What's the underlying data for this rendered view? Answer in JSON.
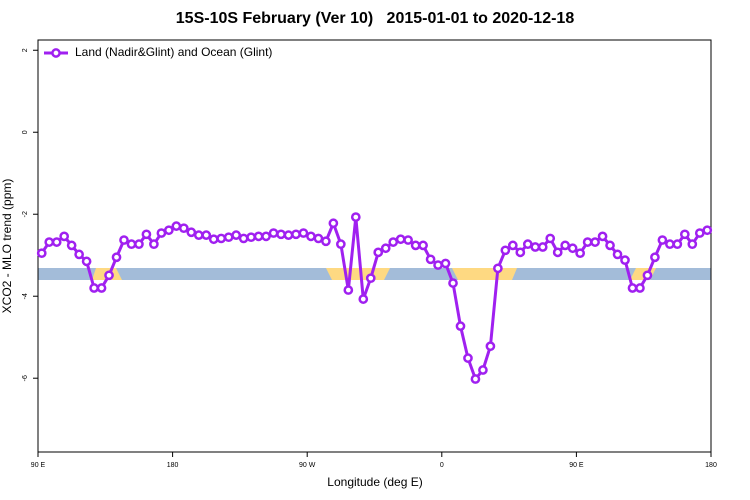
{
  "chart_data": {
    "type": "line",
    "title": "15S-10S February (Ver 10)   2015-01-01 to 2020-12-18",
    "xlabel": "Longitude (deg E)",
    "ylabel": "XCO2 - MLO trend (ppm)",
    "x": [
      92.5,
      97.5,
      102.5,
      107.5,
      112.5,
      117.5,
      122.5,
      127.5,
      132.5,
      137.5,
      142.5,
      147.5,
      152.5,
      157.5,
      162.5,
      167.5,
      172.5,
      177.5,
      182.5,
      187.5,
      192.5,
      197.5,
      202.5,
      207.5,
      212.5,
      217.5,
      222.5,
      227.5,
      232.5,
      237.5,
      242.5,
      247.5,
      252.5,
      257.5,
      262.5,
      267.5,
      272.5,
      277.5,
      282.5,
      287.5,
      292.5,
      297.5,
      302.5,
      307.5,
      312.5,
      317.5,
      322.5,
      327.5,
      332.5,
      337.5,
      342.5,
      347.5,
      352.5,
      357.5,
      362.5,
      367.5,
      372.5,
      377.5,
      382.5,
      387.5,
      392.5,
      397.5,
      402.5,
      407.5,
      412.5,
      417.5,
      422.5,
      427.5,
      432.5,
      437.5,
      442.5,
      447.5,
      452.5,
      457.5,
      462.5,
      467.5,
      472.5,
      477.5,
      482.5,
      487.5,
      492.5,
      497.5,
      502.5,
      507.5,
      512.5,
      517.5,
      522.5,
      527.5,
      532.5,
      537.5
    ],
    "series": [
      {
        "name": "Land (Nadir&Glint) and Ocean (Glint)",
        "color": "#a020f0",
        "values": [
          -2.95,
          -2.68,
          -2.68,
          -2.54,
          -2.76,
          -2.98,
          -3.15,
          -3.8,
          -3.8,
          -3.49,
          -3.05,
          -2.63,
          -2.73,
          -2.73,
          -2.49,
          -2.73,
          -2.46,
          -2.39,
          -2.29,
          -2.34,
          -2.44,
          -2.51,
          -2.51,
          -2.61,
          -2.59,
          -2.56,
          -2.51,
          -2.59,
          -2.56,
          -2.54,
          -2.54,
          -2.46,
          -2.49,
          -2.51,
          -2.49,
          -2.46,
          -2.54,
          -2.59,
          -2.66,
          -2.22,
          -2.73,
          -3.85,
          -2.07,
          -4.07,
          -3.56,
          -2.93,
          -2.83,
          -2.68,
          -2.61,
          -2.63,
          -2.76,
          -2.76,
          -3.1,
          -3.24,
          -3.2,
          -3.68,
          -4.73,
          -5.51,
          -6.02,
          -5.8,
          -5.22,
          -3.32,
          -2.88,
          -2.76,
          -2.93,
          -2.73,
          -2.8,
          -2.8,
          -2.59,
          -2.93,
          -2.76,
          -2.83,
          -2.95,
          -2.68,
          -2.68,
          -2.54,
          -2.76,
          -2.98,
          -3.12,
          -3.8,
          -3.8,
          -3.49,
          -3.05,
          -2.63,
          -2.73,
          -2.73,
          -2.49,
          -2.73,
          -2.46,
          -2.39
        ]
      }
    ],
    "xlim": [
      90,
      540
    ],
    "xticks": [
      {
        "value": 90,
        "label": "90 E"
      },
      180,
      {
        "value": 270,
        "label": "90 W"
      },
      {
        "value": 360,
        "label": "0"
      },
      {
        "value": 450,
        "label": "90 E"
      },
      {
        "value": 540,
        "label": "180"
      }
    ],
    "ylim": [
      -7.8,
      2.25
    ],
    "yticks": [
      2,
      0,
      -2,
      -4,
      -6
    ],
    "legend": "top-left"
  }
}
